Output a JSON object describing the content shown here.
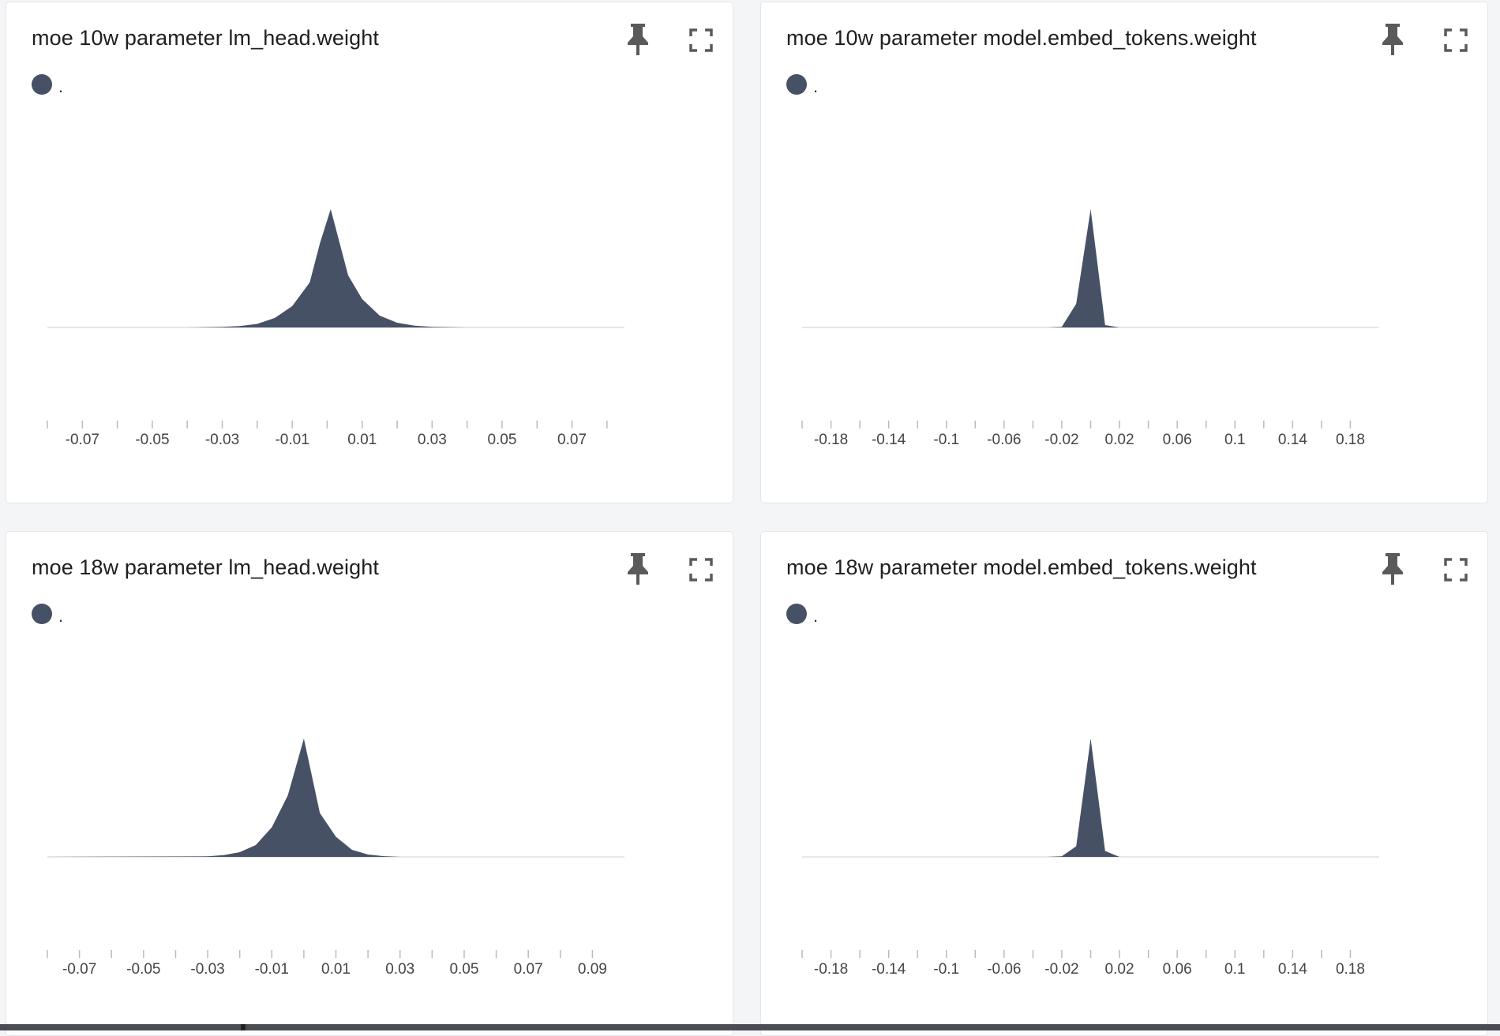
{
  "theme": {
    "fill_color": "#475166",
    "icon_color": "#5a5a5a"
  },
  "icons": {
    "pin": "pin-icon",
    "fullscreen": "fullscreen-icon"
  },
  "panels": [
    {
      "title": "moe 10w parameter lm_head.weight",
      "legend_label": ".",
      "chart_data": {
        "type": "area",
        "xlim": [
          -0.08,
          0.085
        ],
        "tick_values": [
          -0.08,
          -0.07,
          -0.06,
          -0.05,
          -0.04,
          -0.03,
          -0.02,
          -0.01,
          0.0,
          0.01,
          0.02,
          0.03,
          0.04,
          0.05,
          0.06,
          0.07,
          0.08
        ],
        "tick_labels": [
          "-0.07",
          "-0.05",
          "-0.03",
          "-0.01",
          "0.01",
          "0.03",
          "0.05",
          "0.07"
        ],
        "x": [
          -0.08,
          -0.04,
          -0.03,
          -0.025,
          -0.02,
          -0.015,
          -0.01,
          -0.005,
          -0.002,
          0.001,
          0.006,
          0.01,
          0.015,
          0.02,
          0.025,
          0.03,
          0.04,
          0.085
        ],
        "y": [
          0,
          0,
          0.005,
          0.012,
          0.03,
          0.08,
          0.18,
          0.38,
          0.72,
          1.0,
          0.44,
          0.24,
          0.1,
          0.04,
          0.015,
          0.005,
          0,
          0
        ]
      }
    },
    {
      "title": "moe 10w parameter model.embed_tokens.weight",
      "legend_label": ".",
      "chart_data": {
        "type": "area",
        "xlim": [
          -0.2,
          0.2
        ],
        "tick_values": [
          -0.2,
          -0.18,
          -0.16,
          -0.14,
          -0.12,
          -0.1,
          -0.08,
          -0.06,
          -0.04,
          -0.02,
          0.0,
          0.02,
          0.04,
          0.06,
          0.08,
          0.1,
          0.12,
          0.14,
          0.16,
          0.18
        ],
        "tick_labels": [
          "-0.18",
          "-0.14",
          "-0.1",
          "-0.06",
          "-0.02",
          "0.02",
          "0.06",
          "0.1",
          "0.14",
          "0.18"
        ],
        "x": [
          -0.2,
          -0.03,
          -0.02,
          -0.01,
          0.0,
          0.01,
          0.02,
          0.2
        ],
        "y": [
          0,
          0,
          0.005,
          0.2,
          1.0,
          0.02,
          0.0,
          0
        ]
      }
    },
    {
      "title": "moe 18w parameter lm_head.weight",
      "legend_label": ".",
      "chart_data": {
        "type": "area",
        "xlim": [
          -0.08,
          0.1
        ],
        "tick_values": [
          -0.08,
          -0.07,
          -0.06,
          -0.05,
          -0.04,
          -0.03,
          -0.02,
          -0.01,
          0.0,
          0.01,
          0.02,
          0.03,
          0.04,
          0.05,
          0.06,
          0.07,
          0.08,
          0.09
        ],
        "tick_labels": [
          "-0.07",
          "-0.05",
          "-0.03",
          "-0.01",
          "0.01",
          "0.03",
          "0.05",
          "0.07",
          "0.09"
        ],
        "x": [
          -0.08,
          -0.03,
          -0.025,
          -0.02,
          -0.015,
          -0.01,
          -0.005,
          0.0,
          0.005,
          0.01,
          0.015,
          0.02,
          0.025,
          0.03,
          0.1
        ],
        "y": [
          0,
          0.005,
          0.015,
          0.04,
          0.1,
          0.25,
          0.52,
          1.0,
          0.37,
          0.17,
          0.06,
          0.02,
          0.006,
          0,
          0
        ]
      }
    },
    {
      "title": "moe 18w parameter model.embed_tokens.weight",
      "legend_label": ".",
      "chart_data": {
        "type": "area",
        "xlim": [
          -0.2,
          0.2
        ],
        "tick_values": [
          -0.2,
          -0.18,
          -0.16,
          -0.14,
          -0.12,
          -0.1,
          -0.08,
          -0.06,
          -0.04,
          -0.02,
          0.0,
          0.02,
          0.04,
          0.06,
          0.08,
          0.1,
          0.12,
          0.14,
          0.16,
          0.18
        ],
        "tick_labels": [
          "-0.18",
          "-0.14",
          "-0.1",
          "-0.06",
          "-0.02",
          "0.02",
          "0.06",
          "0.1",
          "0.14",
          "0.18"
        ],
        "x": [
          -0.2,
          -0.03,
          -0.02,
          -0.01,
          0.0,
          0.01,
          0.02,
          0.2
        ],
        "y": [
          0,
          0,
          0.005,
          0.09,
          1.0,
          0.05,
          0.0,
          0
        ]
      }
    }
  ]
}
